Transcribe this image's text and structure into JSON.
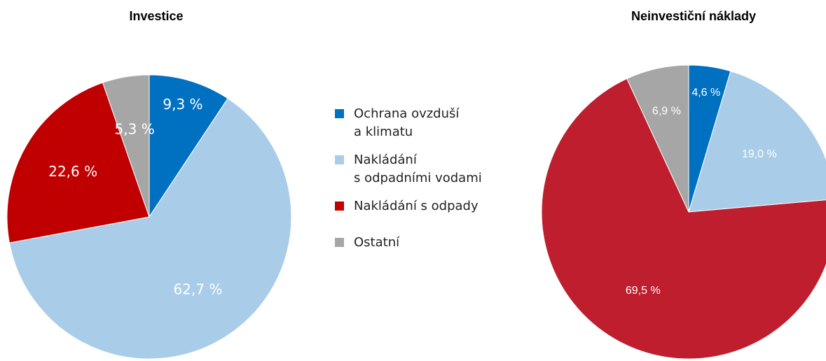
{
  "chart_data": [
    {
      "type": "pie",
      "title": "Investice",
      "categories": [
        "Ochrana ovzduší\na klimatu",
        "Nakládání\ns odpadními vodami",
        "Nakládání s odpady",
        "Ostatní"
      ],
      "values": [
        9.3,
        62.7,
        22.6,
        5.3
      ],
      "value_labels": [
        "9,3 %",
        "62,7 %",
        "22,6 %",
        "5,3 %"
      ],
      "colors": [
        "#0070c0",
        "#a9cde9",
        "#c00000",
        "#a6a6a6"
      ]
    },
    {
      "type": "pie",
      "title": "Neinvestiční náklady",
      "categories": [
        "Ochrana ovzduší\na klimatu",
        "Nakládání\ns odpadními vodami",
        "Nakládání s odpady",
        "Ostatní"
      ],
      "values": [
        4.6,
        19.0,
        69.5,
        6.9
      ],
      "value_labels": [
        "4,6 %",
        "19,0 %",
        "69,5 %",
        "6,9 %"
      ],
      "colors": [
        "#0070c0",
        "#a9cde9",
        "#be1e2d",
        "#a6a6a6"
      ]
    }
  ]
}
